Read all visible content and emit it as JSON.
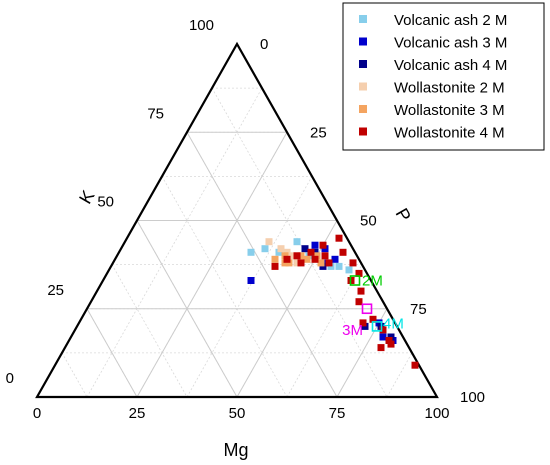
{
  "chart_data": {
    "type": "scatter",
    "subtype": "ternary",
    "axes": {
      "bottom": {
        "label": "Mg",
        "ticks": [
          "0",
          "25",
          "50",
          "75",
          "100"
        ]
      },
      "left": {
        "label": "K",
        "ticks": [
          "100",
          "75",
          "50",
          "25",
          "0"
        ]
      },
      "right": {
        "label": "P",
        "ticks": [
          "100",
          "75",
          "50",
          "25",
          "0"
        ]
      }
    },
    "grid": true,
    "legend_position": "top-right",
    "series": [
      {
        "name": "Volcanic ash 2 M",
        "color": "#87ceeb",
        "points": [
          [
            33,
            41
          ],
          [
            36,
            42
          ],
          [
            40,
            41
          ],
          [
            43,
            44
          ],
          [
            48,
            40
          ],
          [
            55,
            37
          ],
          [
            57,
            37
          ],
          [
            60,
            36
          ]
        ]
      },
      {
        "name": "Volcanic ash 3 M",
        "color": "#0000cd",
        "points": [
          [
            37,
            33
          ],
          [
            48,
            43
          ],
          [
            51,
            42
          ],
          [
            53,
            38
          ],
          [
            55,
            39
          ],
          [
            78,
            17
          ],
          [
            81,
            16
          ],
          [
            75,
            21
          ]
        ]
      },
      {
        "name": "Volcanic ash 4 M",
        "color": "#00008b",
        "points": [
          [
            46,
            42
          ],
          [
            49,
            41
          ],
          [
            53,
            37
          ],
          [
            72,
            20
          ],
          [
            76,
            20
          ],
          [
            80,
            17
          ]
        ]
      },
      {
        "name": "Wollastonite 2 M",
        "color": "#f5cfae",
        "points": [
          [
            36,
            44
          ],
          [
            40,
            42
          ],
          [
            42,
            41
          ],
          [
            44,
            40
          ],
          [
            46,
            38
          ]
        ]
      },
      {
        "name": "Wollastonite 3 M",
        "color": "#f4a460",
        "points": [
          [
            40,
            39
          ],
          [
            42,
            40
          ],
          [
            44,
            38
          ],
          [
            46,
            40
          ],
          [
            48,
            39
          ],
          [
            50,
            40
          ],
          [
            52,
            38
          ],
          [
            43,
            38
          ]
        ]
      },
      {
        "name": "Wollastonite 4 M",
        "color": "#c00000",
        "points": [
          [
            41,
            37
          ],
          [
            43,
            39
          ],
          [
            45,
            40
          ],
          [
            47,
            38
          ],
          [
            48,
            41
          ],
          [
            50,
            43
          ],
          [
            50,
            39
          ],
          [
            52,
            40
          ],
          [
            53,
            45
          ],
          [
            54,
            38
          ],
          [
            56,
            41
          ],
          [
            60,
            38
          ],
          [
            62,
            33
          ],
          [
            63,
            35
          ],
          [
            66,
            30
          ],
          [
            67,
            27
          ],
          [
            71,
            21
          ],
          [
            73,
            22
          ],
          [
            77,
            19
          ],
          [
            79,
            14
          ],
          [
            80,
            16
          ],
          [
            81,
            15
          ],
          [
            90,
            9
          ]
        ]
      }
    ],
    "markers": [
      {
        "label": "2M",
        "color": "#00cc00",
        "point": [
          63,
          33
        ]
      },
      {
        "label": "3M",
        "color": "#ee00ee",
        "point": [
          70,
          25
        ]
      },
      {
        "label": "4M",
        "color": "#00e5e5",
        "point": [
          75,
          20
        ]
      }
    ]
  }
}
